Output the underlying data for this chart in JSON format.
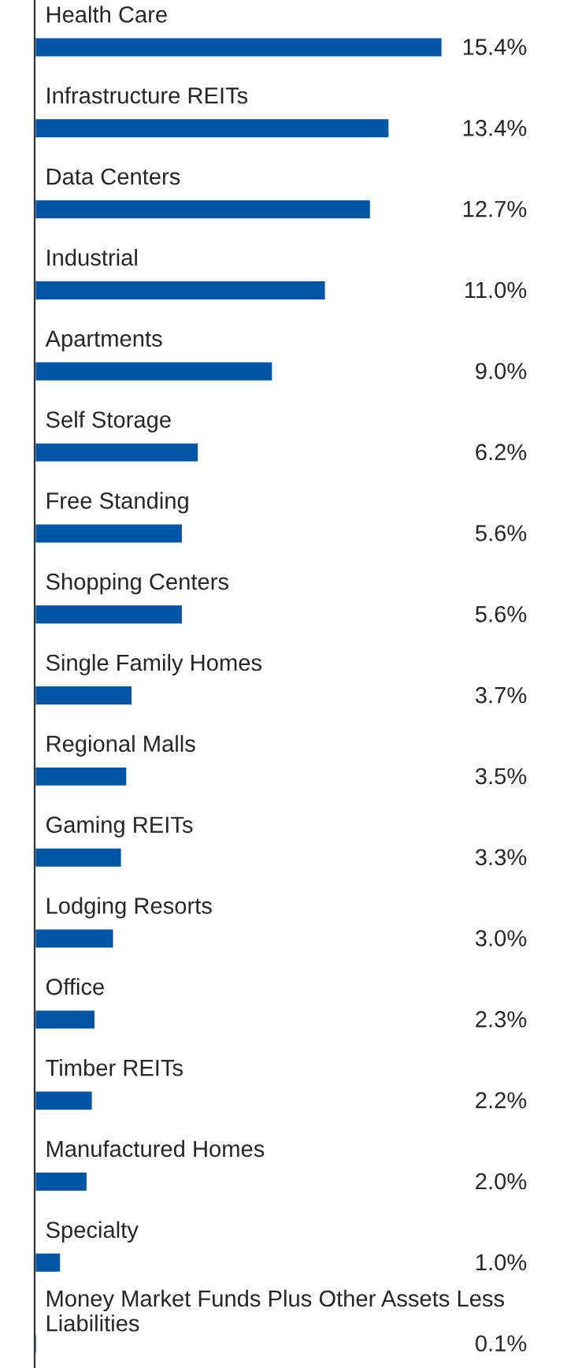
{
  "chart_data": {
    "type": "bar",
    "orientation": "horizontal",
    "categories": [
      "Health Care",
      "Infrastructure REITs",
      "Data Centers",
      "Industrial",
      "Apartments",
      "Self Storage",
      "Free Standing",
      "Shopping Centers",
      "Single Family Homes",
      "Regional Malls",
      "Gaming REITs",
      "Lodging Resorts",
      "Office",
      "Timber REITs",
      "Manufactured Homes",
      "Specialty",
      "Money Market Funds Plus Other Assets Less Liabilities"
    ],
    "values": [
      15.4,
      13.4,
      12.7,
      11.0,
      9.0,
      6.2,
      5.6,
      5.6,
      3.7,
      3.5,
      3.3,
      3.0,
      2.3,
      2.2,
      2.0,
      1.0,
      0.1
    ],
    "value_labels": [
      "15.4%",
      "13.4%",
      "12.7%",
      "11.0%",
      "9.0%",
      "6.2%",
      "5.6%",
      "5.6%",
      "3.7%",
      "3.5%",
      "3.3%",
      "3.0%",
      "2.3%",
      "2.2%",
      "2.0%",
      "1.0%",
      "0.1%"
    ],
    "color": "#0055a5"
  }
}
